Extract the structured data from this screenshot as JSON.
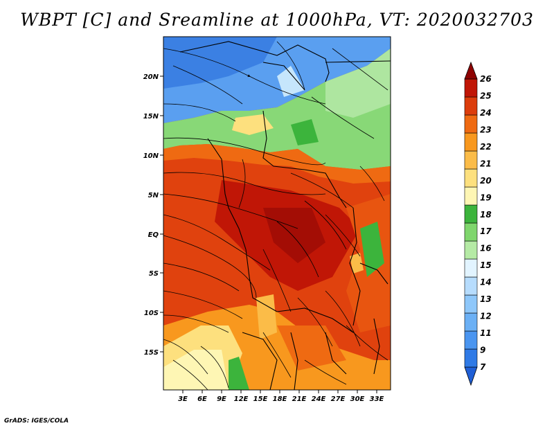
{
  "title": "WBPT [C] and Sreamline at 1000hPa, VT: 2020032703",
  "footer": "GrADS: IGES/COLA",
  "lat_labels": [
    "20N",
    "15N",
    "10N",
    "5N",
    "EQ",
    "5S",
    "10S",
    "15S"
  ],
  "lon_labels": [
    "3E",
    "6E",
    "9E",
    "12E",
    "15E",
    "18E",
    "21E",
    "24E",
    "27E",
    "30E",
    "33E"
  ],
  "colorbar": {
    "labels": [
      "7",
      "9",
      "11",
      "12",
      "13",
      "14",
      "15",
      "16",
      "17",
      "18",
      "19",
      "20",
      "21",
      "22",
      "23",
      "24",
      "25",
      "26"
    ],
    "colors": [
      "#1f5fd6",
      "#2f7ae6",
      "#4a95f0",
      "#6bb0f5",
      "#8ec7fa",
      "#b6dcfd",
      "#e2f4ff",
      "#b5eaa5",
      "#7fd66d",
      "#3cb43c",
      "#fef6b4",
      "#fde07e",
      "#fbbc48",
      "#f8981e",
      "#ef6a12",
      "#dc3d0c",
      "#c01606",
      "#8e0202"
    ]
  }
}
